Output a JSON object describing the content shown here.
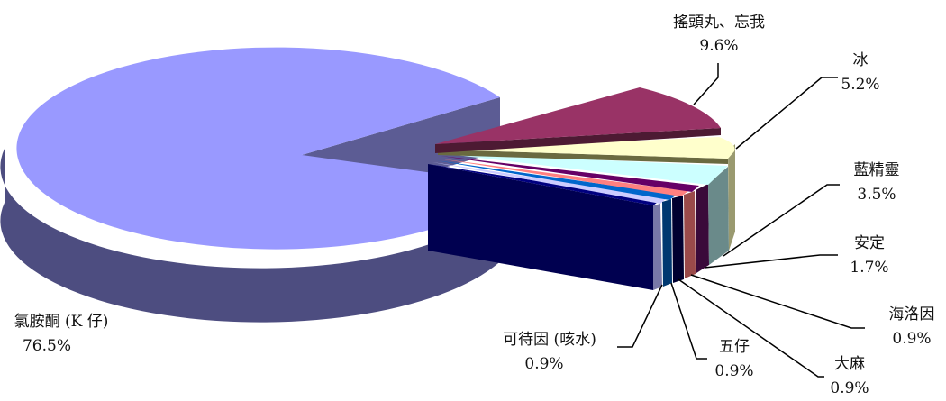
{
  "chart_data": {
    "type": "pie",
    "style": "3d-exploded",
    "slices": [
      {
        "label": "氯胺酮 (K 仔)",
        "value_text": "76.5%",
        "value": 76.5,
        "color": "#9999ff"
      },
      {
        "label": "搖頭丸、忘我",
        "value_text": "9.6%",
        "value": 9.6,
        "color": "#993366"
      },
      {
        "label": "冰",
        "value_text": "5.2%",
        "value": 5.2,
        "color": "#ffffcc"
      },
      {
        "label": "藍精靈",
        "value_text": "3.5%",
        "value": 3.5,
        "color": "#ccffff"
      },
      {
        "label": "安定",
        "value_text": "1.7%",
        "value": 1.7,
        "color": "#660066"
      },
      {
        "label": "海洛因",
        "value_text": "0.9%",
        "value": 0.9,
        "color": "#ff8080"
      },
      {
        "label": "大麻",
        "value_text": "0.9%",
        "value": 0.9,
        "color": "#0066cc"
      },
      {
        "label": "五仔",
        "value_text": "0.9%",
        "value": 0.9,
        "color": "#ccccff"
      },
      {
        "label": "可待因 (咳水)",
        "value_text": "0.9%",
        "value": 0.9,
        "color": "#000080"
      }
    ]
  }
}
